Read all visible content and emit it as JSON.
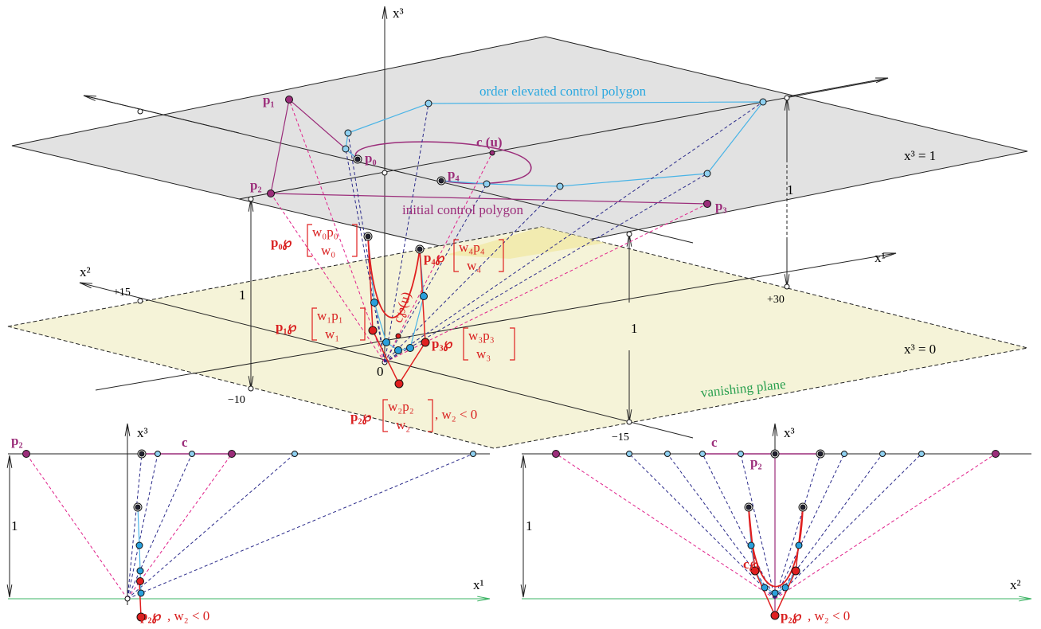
{
  "main": {
    "axis_x3": "x³",
    "axis_x1": "x¹",
    "axis_x2": "x²",
    "points": [
      "p₀",
      "p₁",
      "p₂",
      "p₃",
      "p₄"
    ],
    "curve": "c (u)",
    "elevated_polygon": "order elevated control polygon",
    "initial_polygon": "initial control polygon",
    "plane_top": "x³ = 1",
    "plane_bottom": "x³ = 0",
    "unit_labels": [
      "1",
      "1",
      "1"
    ],
    "axis_ticks": [
      "+15",
      "+30",
      "−10",
      "−15"
    ],
    "origin": "0",
    "vanishing_plane": "vanishing plane",
    "curve_weighted": "c℘(u)",
    "homogeneous": [
      {
        "point": "p₀℘",
        "top": "w₀p₀",
        "bottom": "w₀"
      },
      {
        "point": "p₁℘",
        "top": "w₁p₁",
        "bottom": "w₁"
      },
      {
        "point": "p₂℘",
        "top": "w₂p₂",
        "bottom": "w₂"
      },
      {
        "point": "p₃℘",
        "top": "w₃p₃",
        "bottom": "w₃"
      },
      {
        "point": "p₄℘",
        "top": "w₄p₄",
        "bottom": "w₄"
      }
    ],
    "weight_condition": ",  w₂ < 0"
  },
  "left_view": {
    "point": "p₂",
    "curve": "c",
    "axis_vertical": "x³",
    "unit": "1",
    "axis_horizontal": "x¹",
    "weighted_point": "p₂℘",
    "weight_condition": ",  w₂ < 0"
  },
  "right_view": {
    "curve": "c",
    "axis_vertical": "x³",
    "point": "p₂",
    "unit": "1",
    "curve_weighted": "c℘",
    "axis_horizontal": "x²",
    "weighted_point": "p₂℘",
    "weight_condition": ",  w₂ < 0"
  }
}
